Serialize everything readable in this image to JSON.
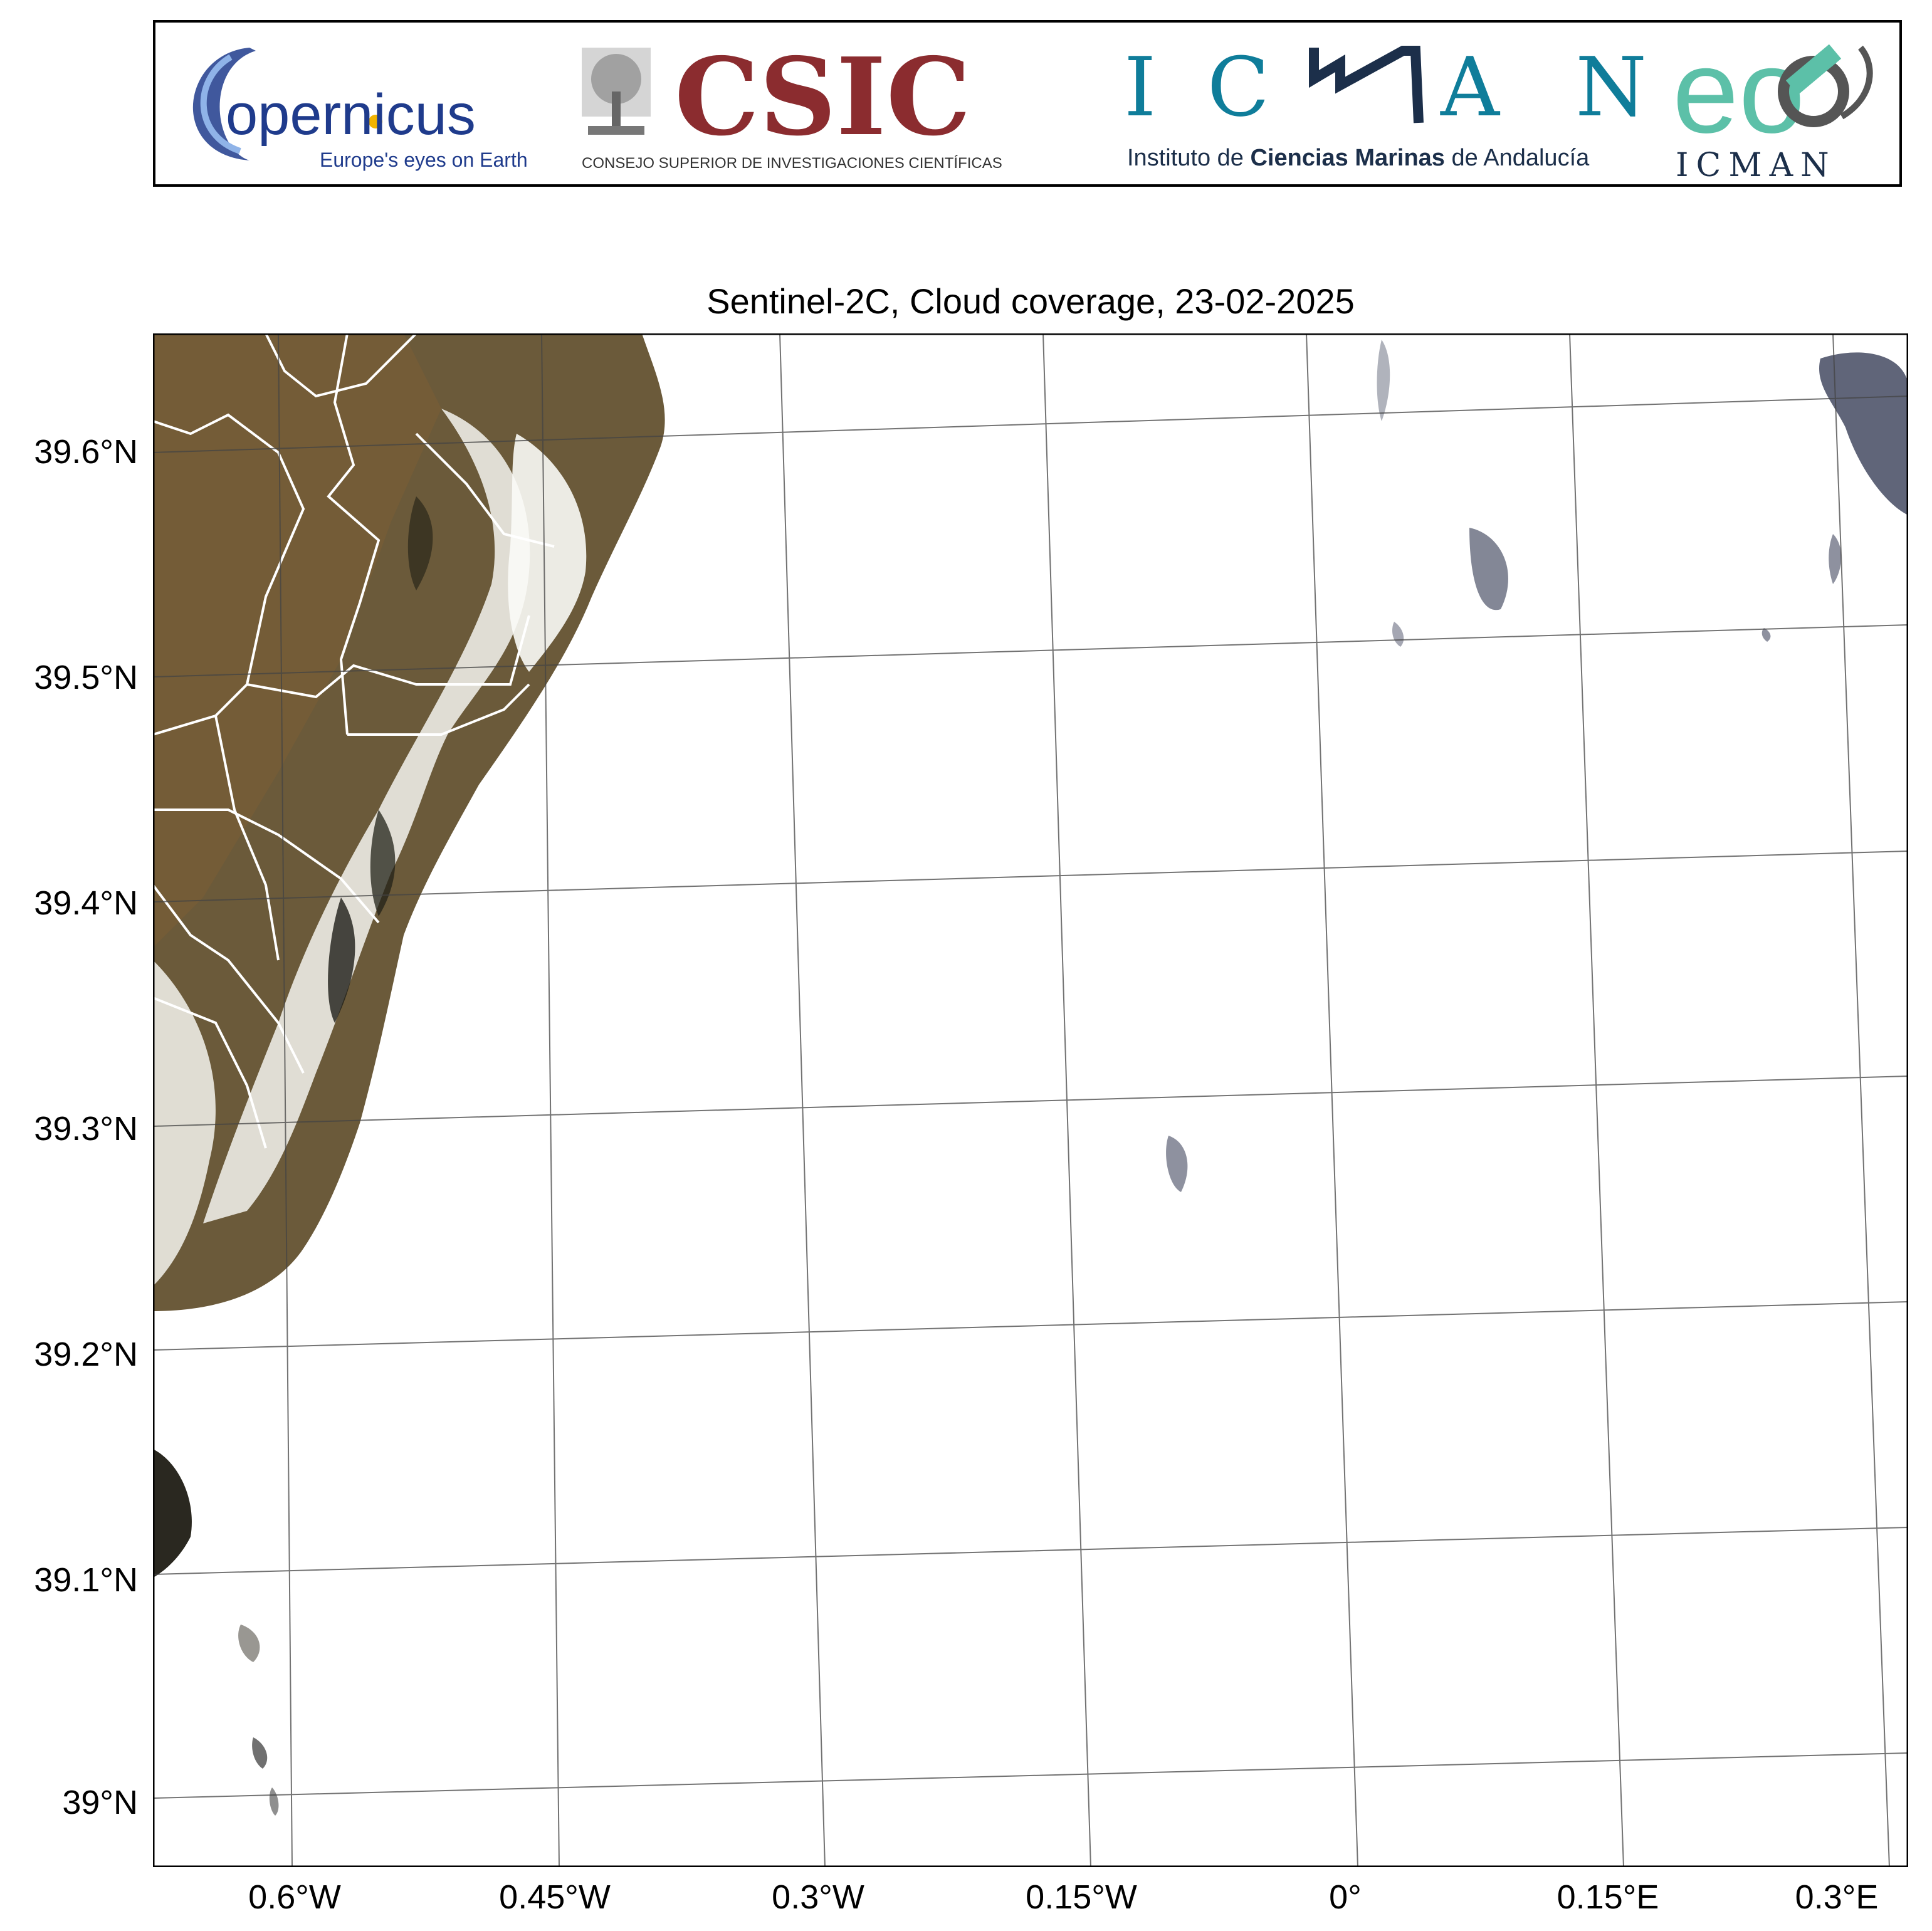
{
  "banner": {
    "copernicus": {
      "wordmark": "opernicus",
      "tagline": "Europe's eyes on Earth",
      "color": "#1f3b8c",
      "accent": "#f2b400"
    },
    "csic": {
      "wordmark": "CSIC",
      "subtitle": "CONSEJO SUPERIOR DE INVESTIGACIONES CIENTÍFICAS",
      "color": "#8b2c2f"
    },
    "icman": {
      "wordmark_left": "I C",
      "wordmark_right": "A N",
      "subtitle_plain_1": "Instituto de ",
      "subtitle_bold": "Ciencias Marinas",
      "subtitle_plain_2": " de Andalucía",
      "color": "#0f7d9a",
      "dark": "#1c2f4a"
    },
    "eo": {
      "wordmark": "eo",
      "sub": "ICMAN",
      "color": "#5cc0a8"
    }
  },
  "map": {
    "title": "Sentinel-2C, Cloud coverage, 23-02-2025",
    "lat_ticks": [
      "39.6°N",
      "39.5°N",
      "39.4°N",
      "39.3°N",
      "39.2°N",
      "39.1°N",
      "39°N"
    ],
    "lon_ticks": [
      "0.6°W",
      "0.45°W",
      "0.3°W",
      "0.15°W",
      "0°",
      "0.15°E",
      "0.3°E"
    ],
    "colors": {
      "land": "#6b5a3a",
      "cloud": "#ffffff",
      "sea": "#ffffff",
      "graticule": "#444444",
      "borders": "#ffffff",
      "sea_cloud_shadow": "#1d2440"
    }
  }
}
